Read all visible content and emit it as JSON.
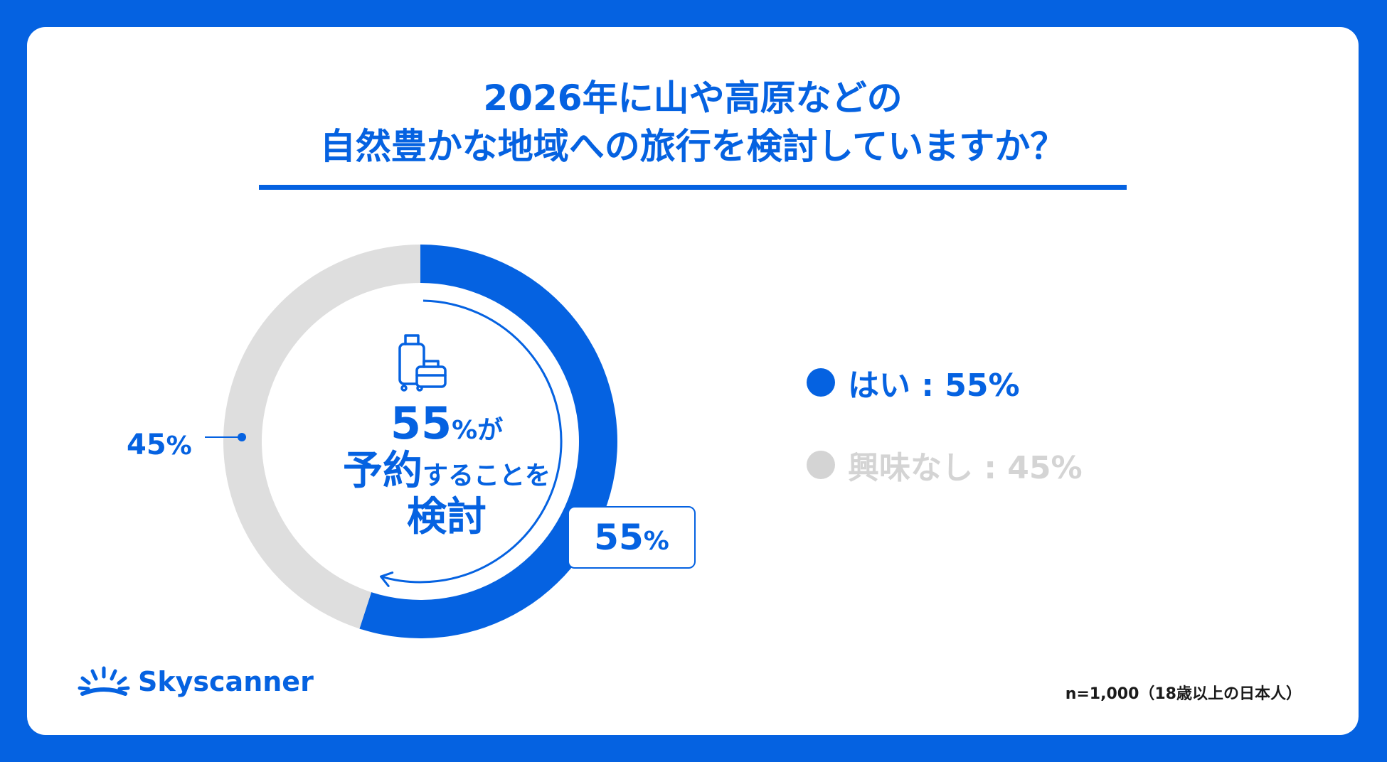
{
  "title": {
    "line1": "2026年に山や高原などの",
    "line2": "自然豊かな地域への旅行を検討していますか？"
  },
  "center": {
    "icon": "luggage-icon",
    "num": "55",
    "pct": "%が",
    "line2_big": "予約",
    "line2_small": "することを",
    "line3": "検討"
  },
  "labels": {
    "yes_num": "55",
    "yes_pct": "%",
    "no_num": "45",
    "no_pct": "%"
  },
  "legend": {
    "yes": "はい : 55%",
    "no": "興味なし : 45%"
  },
  "colors": {
    "yes": "#0562e1",
    "no": "#dedede",
    "background": "#0562e1"
  },
  "brand": {
    "logo_icon": "sunrise-icon",
    "name": "Skyscanner"
  },
  "note": "n=1,000（18歳以上の日本人）",
  "chart_data": {
    "type": "pie",
    "style": "donut",
    "categories": [
      "はい",
      "興味なし"
    ],
    "values": [
      55,
      45
    ],
    "unit": "%",
    "title": "2026年に山や高原などの自然豊かな地域への旅行を検討していますか？",
    "legend_position": "right"
  }
}
